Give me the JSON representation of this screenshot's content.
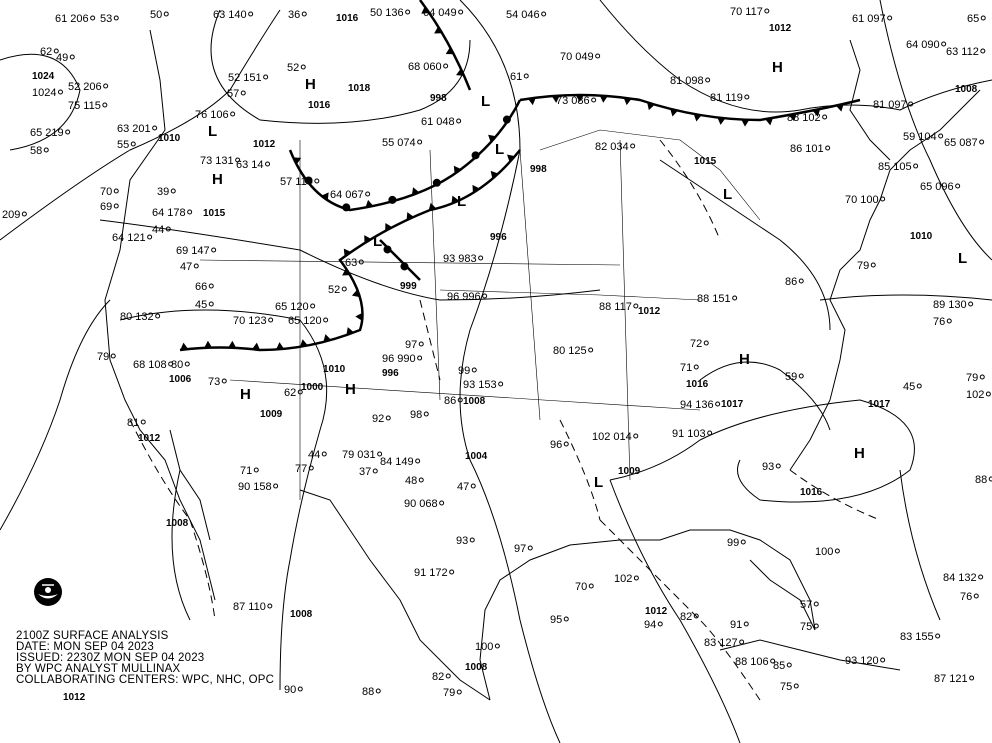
{
  "caption": {
    "line1": "2100Z SURFACE ANALYSIS",
    "line2": "DATE: MON SEP 04 2023",
    "line3": "ISSUED: 2230Z MON SEP 04 2023",
    "line4": "BY WPC ANALYST MULLINAX",
    "line5": "COLLABORATING CENTERS: WPC, NHC, OPC"
  },
  "logo": {
    "name": "noaa-logo",
    "text": "NOAA"
  },
  "pressure_centers": [
    "H",
    "H",
    "H",
    "H",
    "H",
    "H",
    "H",
    "L",
    "L",
    "L",
    "L",
    "L",
    "L",
    "L",
    "L"
  ],
  "isobar_labels": [
    "1024",
    "1016",
    "1016",
    "1018",
    "998",
    "1012",
    "1010",
    "1015",
    "1015",
    "1012",
    "1008",
    "1010",
    "996",
    "999",
    "1012",
    "1006",
    "1000",
    "1010",
    "996",
    "1016",
    "1017",
    "1017",
    "1009",
    "1008",
    "1004",
    "1009",
    "1016",
    "1012",
    "1008",
    "1008",
    "1012",
    "1008",
    "1012",
    "998"
  ],
  "stations": [
    "61 206",
    "53",
    "50",
    "63 140",
    "36",
    "50 136",
    "64 049",
    "54 046",
    "70 117",
    "61 097",
    "65",
    "62",
    "49",
    "52 206",
    "75 115",
    "52 151",
    "52",
    "68 060",
    "70 049",
    "81 098",
    "81 119",
    "64 090",
    "63 112",
    "1024",
    "65 219",
    "63 201",
    "58",
    "55",
    "76 106",
    "57",
    "39",
    "61 048",
    "61",
    "73 086",
    "88 102",
    "81 097",
    "59 104",
    "65 087",
    "70",
    "69",
    "64 178",
    "44",
    "73 131",
    "63 14",
    "57 114",
    "64 067",
    "55 074",
    "82 034",
    "86 101",
    "85 105",
    "65 096",
    "209",
    "64 121",
    "69 147",
    "47",
    "66",
    "45",
    "65 120",
    "52",
    "63",
    "70 100",
    "80 132",
    "70 123",
    "65 120",
    "93 983",
    "96 996",
    "88 117",
    "88 151",
    "86",
    "79",
    "89 130",
    "76",
    "79",
    "68 108",
    "80",
    "73",
    "96 990",
    "97",
    "99",
    "93 153",
    "80 125",
    "71",
    "59",
    "45",
    "79",
    "102",
    "98",
    "86",
    "94 136",
    "81",
    "72",
    "62",
    "92",
    "79 031",
    "96",
    "102 014",
    "91 103",
    "93",
    "88",
    "90 158",
    "71",
    "44",
    "90 068",
    "93",
    "47",
    "99",
    "100",
    "91",
    "83 155",
    "84 149",
    "87 110",
    "91 172",
    "97",
    "70",
    "102",
    "95",
    "94",
    "82",
    "88 106",
    "85",
    "93 120",
    "87 121",
    "90",
    "88",
    "82",
    "79",
    "100",
    "57",
    "75",
    "84 132",
    "76",
    "83 127",
    "75",
    "77",
    "37",
    "48",
    "45"
  ],
  "fronts": {
    "cold_front_color": "#000000",
    "warm_front_color": "#000000",
    "stationary_front_color": "#000000",
    "trough_style": "dashed"
  }
}
